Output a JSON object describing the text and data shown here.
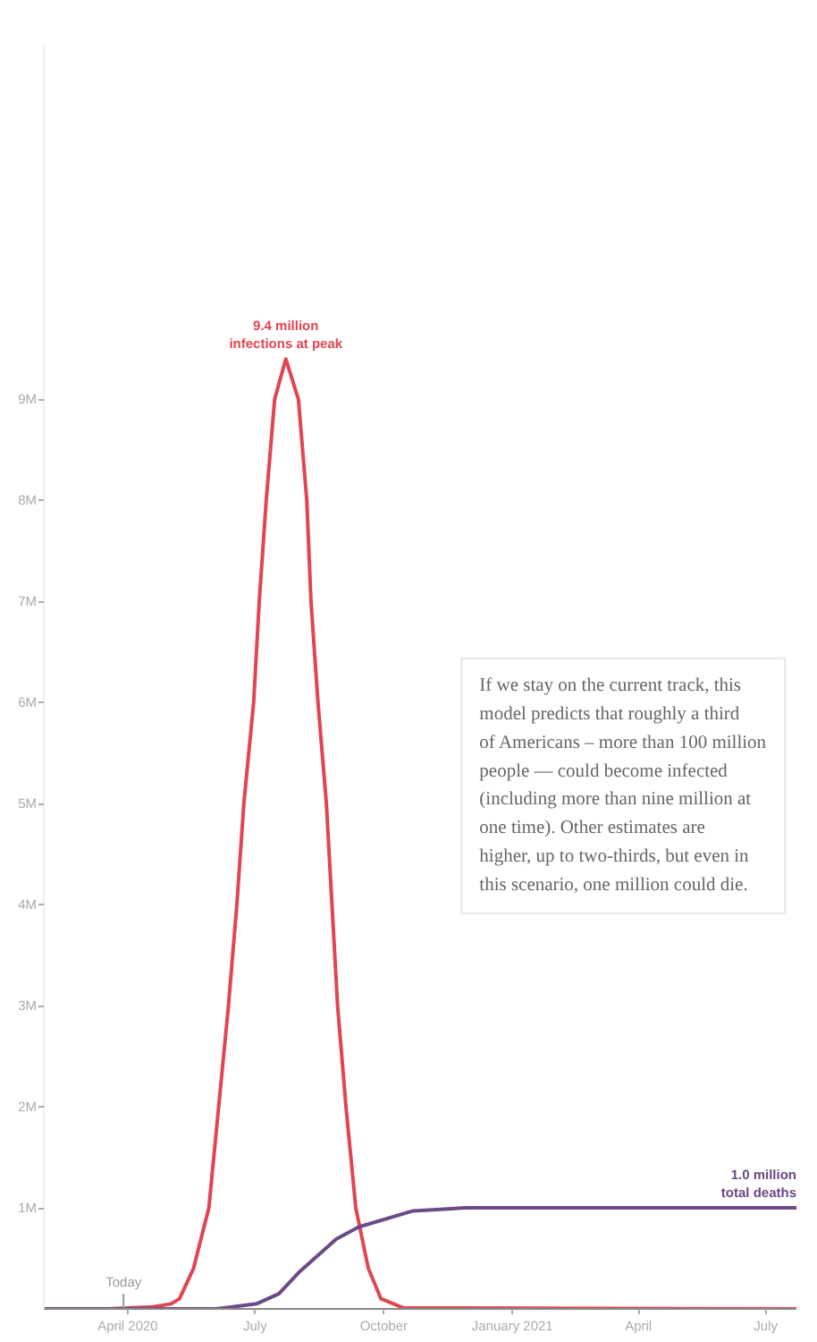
{
  "chart_data": {
    "type": "line",
    "xlim": [
      "2020-02-01",
      "2021-07-23"
    ],
    "xticks": [
      {
        "value": "2020-04-01",
        "label": "April 2020"
      },
      {
        "value": "2020-07-01",
        "label": "July"
      },
      {
        "value": "2020-10-01",
        "label": "October"
      },
      {
        "value": "2021-01-01",
        "label": "January 2021"
      },
      {
        "value": "2021-04-01",
        "label": "April"
      },
      {
        "value": "2021-07-01",
        "label": "July"
      }
    ],
    "ylim": [
      0,
      12500000
    ],
    "yticks": [
      {
        "value": 1000000,
        "label": "1M"
      },
      {
        "value": 2000000,
        "label": "2M"
      },
      {
        "value": 3000000,
        "label": "3M"
      },
      {
        "value": 4000000,
        "label": "4M"
      },
      {
        "value": 5000000,
        "label": "5M"
      },
      {
        "value": 6000000,
        "label": "6M"
      },
      {
        "value": 7000000,
        "label": "7M"
      },
      {
        "value": 8000000,
        "label": "8M"
      },
      {
        "value": 9000000,
        "label": "9M"
      }
    ],
    "grid": false,
    "marker": "none",
    "line_style": "solid",
    "series": [
      {
        "color": "#e0464f",
        "x": [
          "2020-02-01",
          "2020-03-18",
          "2020-04-19",
          "2020-05-02",
          "2020-05-08",
          "2020-05-18",
          "2020-05-29",
          "2020-06-05",
          "2020-06-12",
          "2020-06-18",
          "2020-06-23",
          "2020-06-30",
          "2020-07-04",
          "2020-07-09",
          "2020-07-15",
          "2020-07-23",
          "2020-08-01",
          "2020-08-07",
          "2020-08-10",
          "2020-08-15",
          "2020-08-21",
          "2020-08-25",
          "2020-08-29",
          "2020-09-04",
          "2020-09-11",
          "2020-09-20",
          "2020-09-29",
          "2020-10-15",
          "2021-07-23"
        ],
        "values": [
          0,
          0,
          20000,
          50000,
          100000,
          400000,
          1000000,
          2000000,
          3000000,
          4000000,
          5000000,
          6000000,
          7000000,
          8000000,
          9000000,
          9400000,
          9000000,
          8000000,
          7000000,
          6000000,
          5000000,
          4000000,
          3000000,
          2000000,
          1000000,
          400000,
          100000,
          10000,
          0
        ]
      },
      {
        "color": "#6b4a85",
        "x": [
          "2020-02-01",
          "2020-06-03",
          "2020-07-02",
          "2020-07-18",
          "2020-08-02",
          "2020-08-28",
          "2020-09-13",
          "2020-10-22",
          "2020-11-29",
          "2021-07-23"
        ],
        "values": [
          0,
          0,
          50000,
          150000,
          370000,
          690000,
          810000,
          970000,
          1000000,
          1000000
        ]
      }
    ],
    "annotations": [
      {
        "text": "Today",
        "x": "2020-03-29",
        "y": 0
      },
      {
        "text": "9.4 million\ninfections at peak",
        "x": "2020-07-23",
        "y": 9400000
      },
      {
        "text": "1.0 million\ntotal deaths",
        "x": "2021-07-23",
        "y": 1000000
      },
      "If we stay on the current track, this model predicts that roughly a third of Americans – more than 100 million people — could become infected (including more than nine million at one time). Other estimates are higher, up to two-thirds, but even in this scenario, one million could die."
    ]
  }
}
